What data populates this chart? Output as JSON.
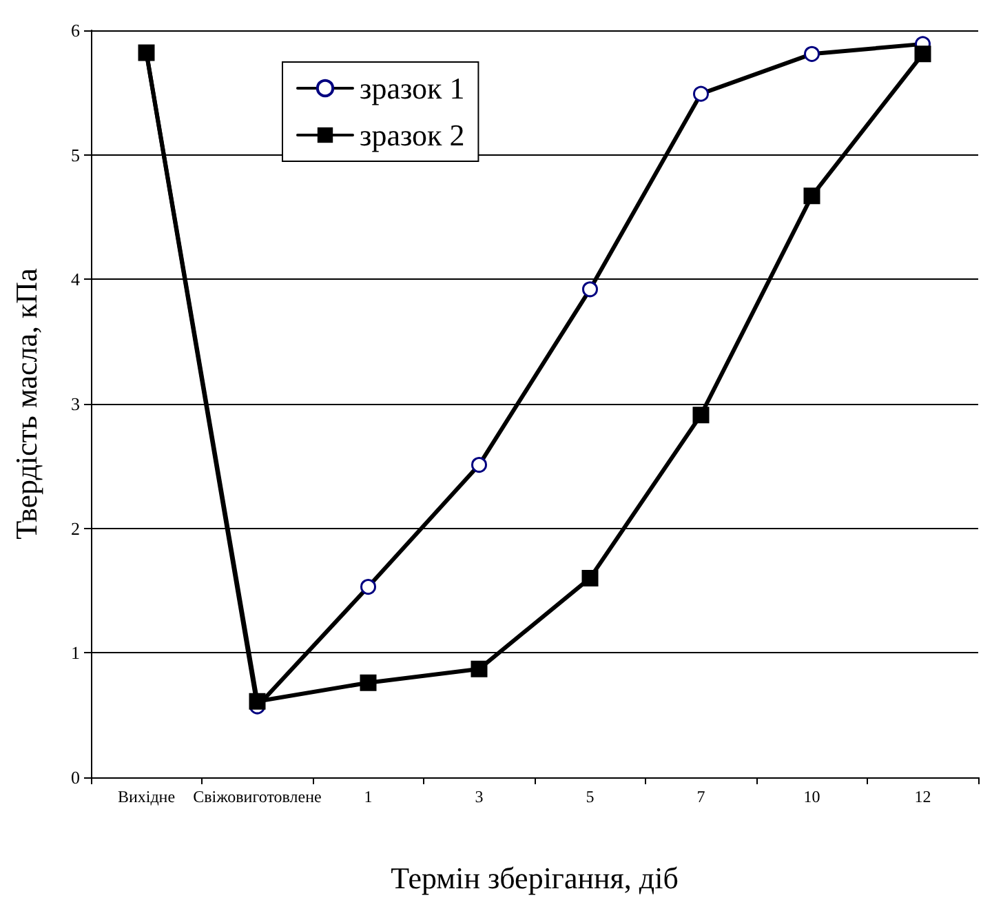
{
  "chart_data": {
    "type": "line",
    "xlabel": "Термін зберігання, діб",
    "ylabel": "Твердість масла, кПа",
    "categories": [
      "Вихідне",
      "Свіжовиготовлене",
      "1",
      "3",
      "5",
      "7",
      "10",
      "12"
    ],
    "series": [
      {
        "name": "зразок 1",
        "color": "#000080",
        "marker": "circle",
        "values": [
          5.82,
          0.57,
          1.53,
          2.51,
          3.92,
          5.49,
          5.81,
          5.89
        ]
      },
      {
        "name": "зразок 2",
        "color": "#000000",
        "marker": "square",
        "values": [
          5.82,
          0.61,
          0.76,
          0.87,
          1.6,
          2.91,
          4.67,
          5.81
        ]
      }
    ],
    "ylim": [
      0,
      6
    ],
    "yticks": [
      0,
      1,
      2,
      3,
      4,
      5,
      6
    ],
    "grid": "y",
    "legend": "top"
  }
}
